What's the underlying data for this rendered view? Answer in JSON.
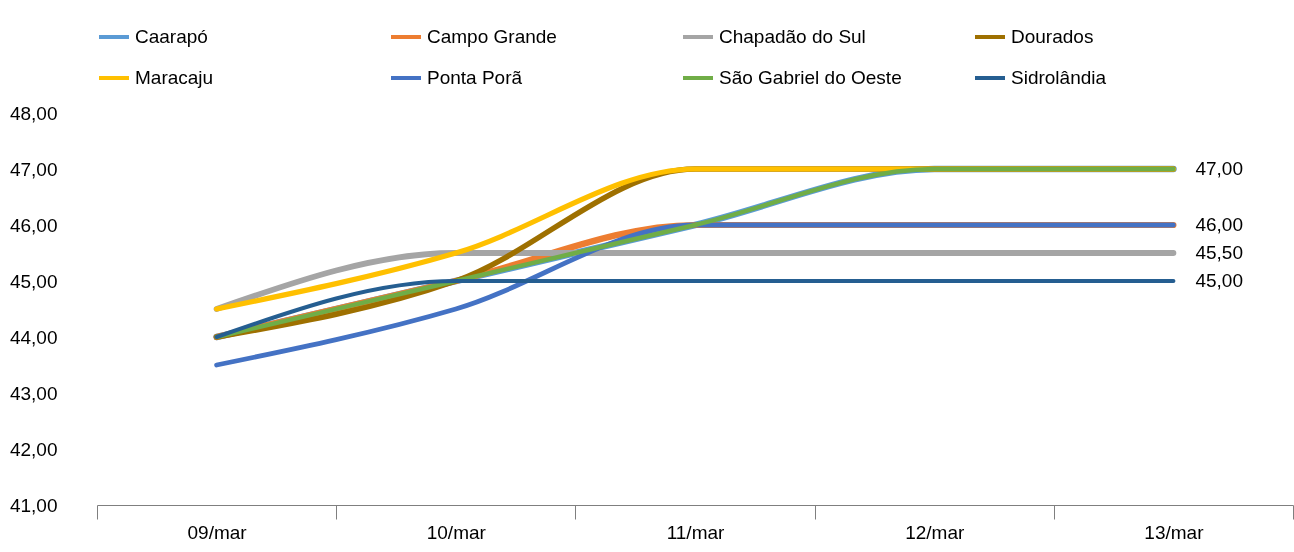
{
  "chart_data": {
    "type": "line",
    "categories": [
      "09/mar",
      "10/mar",
      "11/mar",
      "12/mar",
      "13/mar"
    ],
    "ylim": [
      41,
      48
    ],
    "yticks": [
      {
        "value": 41,
        "label": "41,00"
      },
      {
        "value": 42,
        "label": "42,00"
      },
      {
        "value": 43,
        "label": "43,00"
      },
      {
        "value": 44,
        "label": "44,00"
      },
      {
        "value": 45,
        "label": "45,00"
      },
      {
        "value": 46,
        "label": "46,00"
      },
      {
        "value": 47,
        "label": "47,00"
      },
      {
        "value": 48,
        "label": "48,00"
      }
    ],
    "grid": false,
    "legend": "top",
    "series": [
      {
        "name": "Caarapó",
        "color": "#5b9bd5",
        "values": [
          44,
          45,
          46,
          47,
          47
        ]
      },
      {
        "name": "Campo Grande",
        "color": "#ed7d31",
        "values": [
          44,
          45,
          46,
          46,
          46
        ]
      },
      {
        "name": "Chapadão do Sul",
        "color": "#a5a5a5",
        "values": [
          44.5,
          45.5,
          45.5,
          45.5,
          45.5
        ],
        "value_labels": [
          null,
          null,
          null,
          null,
          "45,50"
        ]
      },
      {
        "name": "Dourados",
        "color": "#9e7000",
        "values": [
          44,
          45,
          47,
          47,
          47
        ]
      },
      {
        "name": "Maracaju",
        "color": "#ffc000",
        "values": [
          44.5,
          45.5,
          47,
          47,
          47
        ]
      },
      {
        "name": "Ponta Porã",
        "color": "#4472c4",
        "values": [
          43.5,
          44.5,
          46,
          46,
          46
        ],
        "value_labels": [
          null,
          null,
          null,
          null,
          "46,00"
        ]
      },
      {
        "name": "São Gabriel do Oeste",
        "color": "#70ad47",
        "values": [
          44,
          45,
          46,
          47,
          47
        ],
        "value_labels": [
          null,
          null,
          null,
          null,
          "47,00"
        ]
      },
      {
        "name": "Sidrolândia",
        "color": "#255e91",
        "values": [
          44,
          45,
          45,
          45,
          45
        ],
        "value_labels": [
          null,
          null,
          null,
          null,
          "45,00"
        ]
      }
    ]
  }
}
